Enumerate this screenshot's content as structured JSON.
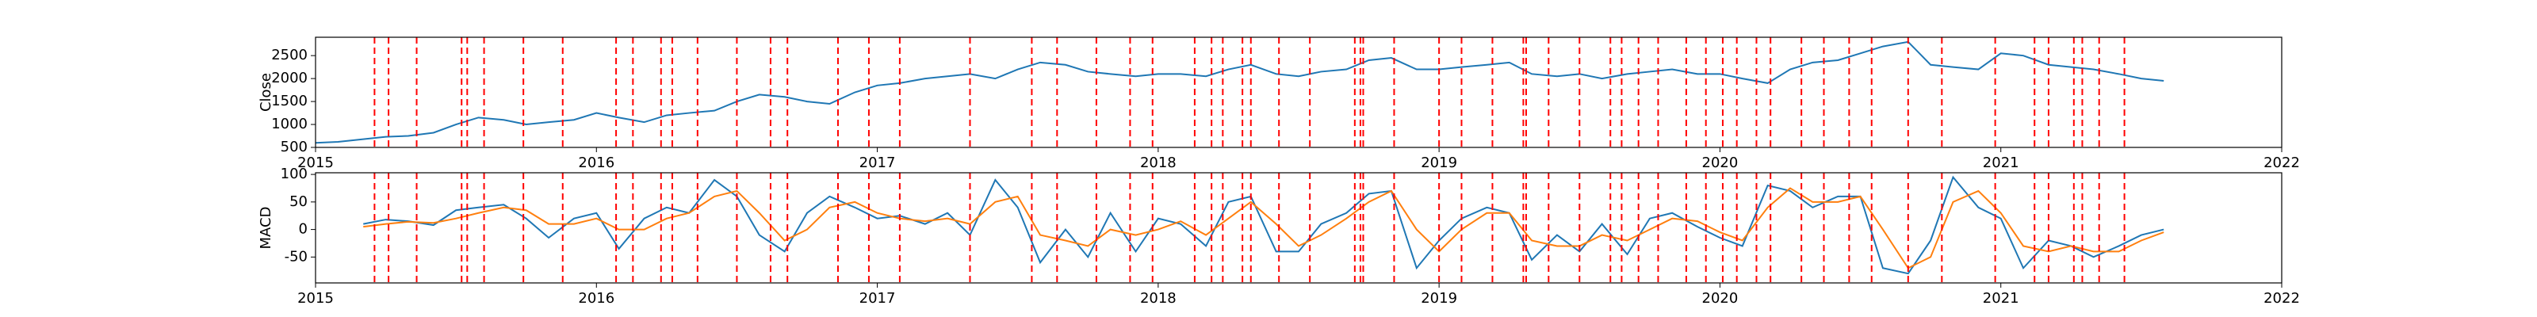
{
  "chart_data": [
    {
      "type": "line",
      "ylabel": "Close",
      "x": [
        2015,
        2015.08,
        2015.17,
        2015.25,
        2015.33,
        2015.42,
        2015.5,
        2015.58,
        2015.67,
        2015.75,
        2015.83,
        2015.92,
        2016,
        2016.08,
        2016.17,
        2016.25,
        2016.33,
        2016.42,
        2016.5,
        2016.58,
        2016.67,
        2016.75,
        2016.83,
        2016.92,
        2017,
        2017.08,
        2017.17,
        2017.25,
        2017.33,
        2017.42,
        2017.5,
        2017.58,
        2017.67,
        2017.75,
        2017.83,
        2017.92,
        2018,
        2018.08,
        2018.17,
        2018.25,
        2018.33,
        2018.42,
        2018.5,
        2018.58,
        2018.67,
        2018.75,
        2018.83,
        2018.92,
        2019,
        2019.08,
        2019.17,
        2019.25,
        2019.33,
        2019.42,
        2019.5,
        2019.58,
        2019.67,
        2019.75,
        2019.83,
        2019.92,
        2020,
        2020.08,
        2020.17,
        2020.25,
        2020.33,
        2020.42,
        2020.5,
        2020.58,
        2020.67,
        2020.75,
        2020.83,
        2020.92,
        2021,
        2021.08,
        2021.17,
        2021.25,
        2021.33,
        2021.42,
        2021.5,
        2021.58
      ],
      "series": [
        {
          "color": "#1f77b4",
          "values": [
            600,
            620,
            680,
            730,
            750,
            820,
            1000,
            1150,
            1100,
            1000,
            1050,
            1100,
            1250,
            1150,
            1050,
            1200,
            1250,
            1300,
            1500,
            1650,
            1600,
            1500,
            1450,
            1700,
            1850,
            1900,
            2000,
            2050,
            2100,
            2000,
            2200,
            2350,
            2300,
            2150,
            2100,
            2050,
            2100,
            2100,
            2050,
            2200,
            2300,
            2100,
            2050,
            2150,
            2200,
            2400,
            2450,
            2200,
            2200,
            2250,
            2300,
            2350,
            2100,
            2050,
            2100,
            2000,
            2100,
            2150,
            2200,
            2100,
            2100,
            2000,
            1900,
            2200,
            2350,
            2400,
            2550,
            2700,
            2800,
            2300,
            2250,
            2200,
            2550,
            2500,
            2300,
            2250,
            2200,
            2100,
            2000,
            1950
          ]
        }
      ],
      "vlines": [
        2015.21,
        2015.26,
        2015.36,
        2015.52,
        2015.54,
        2015.6,
        2015.74,
        2015.88,
        2016.07,
        2016.13,
        2016.23,
        2016.27,
        2016.36,
        2016.5,
        2016.62,
        2016.68,
        2016.86,
        2016.97,
        2017.08,
        2017.33,
        2017.55,
        2017.64,
        2017.78,
        2017.9,
        2017.98,
        2018.13,
        2018.19,
        2018.23,
        2018.3,
        2018.33,
        2018.43,
        2018.54,
        2018.7,
        2018.72,
        2018.73,
        2018.84,
        2019,
        2019.08,
        2019.19,
        2019.3,
        2019.31,
        2019.39,
        2019.5,
        2019.61,
        2019.65,
        2019.71,
        2019.78,
        2019.88,
        2019.95,
        2020.01,
        2020.06,
        2020.13,
        2020.18,
        2020.29,
        2020.37,
        2020.46,
        2020.54,
        2020.67,
        2020.79,
        2020.98,
        2021.12,
        2021.17,
        2021.26,
        2021.29,
        2021.35,
        2021.44
      ],
      "vline_color": "red",
      "xlim": [
        2015,
        2022
      ],
      "xticks": [
        2015,
        2016,
        2017,
        2018,
        2019,
        2020,
        2021,
        2022
      ],
      "ylim": [
        500,
        2900
      ],
      "yticks": [
        500,
        1000,
        1500,
        2000,
        2500
      ]
    },
    {
      "type": "line",
      "ylabel": "MACD",
      "x": [
        2015,
        2015.08,
        2015.17,
        2015.25,
        2015.33,
        2015.42,
        2015.5,
        2015.58,
        2015.67,
        2015.75,
        2015.83,
        2015.92,
        2016,
        2016.08,
        2016.17,
        2016.25,
        2016.33,
        2016.42,
        2016.5,
        2016.58,
        2016.67,
        2016.75,
        2016.83,
        2016.92,
        2017,
        2017.08,
        2017.17,
        2017.25,
        2017.33,
        2017.42,
        2017.5,
        2017.58,
        2017.67,
        2017.75,
        2017.83,
        2017.92,
        2018,
        2018.08,
        2018.17,
        2018.25,
        2018.33,
        2018.42,
        2018.5,
        2018.58,
        2018.67,
        2018.75,
        2018.83,
        2018.92,
        2019,
        2019.08,
        2019.17,
        2019.25,
        2019.33,
        2019.42,
        2019.5,
        2019.58,
        2019.67,
        2019.75,
        2019.83,
        2019.92,
        2020,
        2020.08,
        2020.17,
        2020.25,
        2020.33,
        2020.42,
        2020.5,
        2020.58,
        2020.67,
        2020.75,
        2020.83,
        2020.92,
        2021,
        2021.08,
        2021.17,
        2021.25,
        2021.33,
        2021.42,
        2021.5,
        2021.58
      ],
      "series": [
        {
          "color": "#1f77b4",
          "values": [
            null,
            null,
            10,
            18,
            15,
            8,
            35,
            40,
            45,
            20,
            -15,
            20,
            30,
            -35,
            20,
            40,
            30,
            90,
            60,
            -10,
            -40,
            30,
            60,
            40,
            20,
            25,
            10,
            30,
            -10,
            90,
            40,
            -60,
            0,
            -50,
            30,
            -40,
            20,
            10,
            -30,
            50,
            60,
            -40,
            -40,
            10,
            30,
            65,
            70,
            -70,
            -20,
            20,
            40,
            30,
            -55,
            -10,
            -40,
            10,
            -45,
            20,
            30,
            5,
            -15,
            -30,
            80,
            70,
            40,
            60,
            60,
            -70,
            -80,
            -20,
            95,
            40,
            20,
            -70,
            -20,
            -30,
            -50,
            -30,
            -10,
            0
          ]
        },
        {
          "color": "#ff7f0e",
          "values": [
            null,
            null,
            5,
            10,
            14,
            12,
            20,
            30,
            40,
            35,
            10,
            10,
            20,
            0,
            0,
            20,
            30,
            60,
            70,
            30,
            -20,
            0,
            40,
            50,
            30,
            20,
            15,
            20,
            10,
            50,
            60,
            -10,
            -20,
            -30,
            0,
            -10,
            0,
            15,
            -10,
            20,
            50,
            10,
            -30,
            -10,
            20,
            50,
            70,
            0,
            -40,
            0,
            30,
            30,
            -20,
            -30,
            -30,
            -10,
            -20,
            0,
            20,
            15,
            -5,
            -20,
            40,
            75,
            50,
            50,
            60,
            0,
            -70,
            -50,
            50,
            70,
            30,
            -30,
            -40,
            -30,
            -40,
            -40,
            -20,
            -5
          ]
        }
      ],
      "vlines": [
        2015.21,
        2015.26,
        2015.36,
        2015.52,
        2015.54,
        2015.6,
        2015.74,
        2015.88,
        2016.07,
        2016.13,
        2016.23,
        2016.27,
        2016.36,
        2016.5,
        2016.62,
        2016.68,
        2016.86,
        2016.97,
        2017.08,
        2017.33,
        2017.55,
        2017.64,
        2017.78,
        2017.9,
        2017.98,
        2018.13,
        2018.19,
        2018.23,
        2018.3,
        2018.33,
        2018.43,
        2018.54,
        2018.7,
        2018.72,
        2018.73,
        2018.84,
        2019,
        2019.08,
        2019.19,
        2019.3,
        2019.31,
        2019.39,
        2019.5,
        2019.61,
        2019.65,
        2019.71,
        2019.78,
        2019.88,
        2019.95,
        2020.01,
        2020.06,
        2020.13,
        2020.18,
        2020.29,
        2020.37,
        2020.46,
        2020.54,
        2020.67,
        2020.79,
        2020.98,
        2021.12,
        2021.17,
        2021.26,
        2021.29,
        2021.35,
        2021.44
      ],
      "vline_color": "red",
      "xlim": [
        2015,
        2022
      ],
      "xticks": [
        2015,
        2016,
        2017,
        2018,
        2019,
        2020,
        2021,
        2022
      ],
      "ylim": [
        -97,
        103
      ],
      "yticks": [
        -50,
        0,
        50,
        100
      ]
    }
  ]
}
